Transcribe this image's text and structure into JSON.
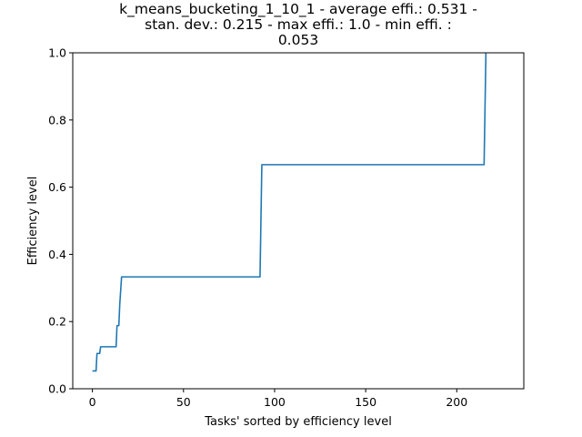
{
  "chart_data": {
    "type": "line",
    "title_lines": [
      "k_means_bucketing_1_10_1 - average effi.: 0.531 -",
      "stan. dev.: 0.215 - max effi.: 1.0 - min effi. :",
      "0.053"
    ],
    "xlabel": "Tasks' sorted by efficiency level",
    "ylabel": "Efficiency level",
    "xlim": [
      -10.8,
      236.8
    ],
    "ylim": [
      0,
      1.0
    ],
    "xticks": [
      0,
      50,
      100,
      150,
      200
    ],
    "yticks": [
      0.0,
      0.2,
      0.4,
      0.6,
      0.8,
      1.0
    ],
    "ytick_labels": [
      "0.0",
      "0.2",
      "0.4",
      "0.6",
      "0.8",
      "1.0"
    ],
    "grid": false,
    "series": [
      {
        "color": "#1f77b4",
        "x": [
          0,
          2,
          2.5,
          4,
          4.5,
          13,
          13.5,
          14.5,
          15,
          16,
          92,
          93,
          215,
          216
        ],
        "y": [
          0.053,
          0.053,
          0.105,
          0.105,
          0.125,
          0.125,
          0.188,
          0.188,
          0.25,
          0.333,
          0.333,
          0.667,
          0.667,
          1.0
        ]
      }
    ]
  }
}
